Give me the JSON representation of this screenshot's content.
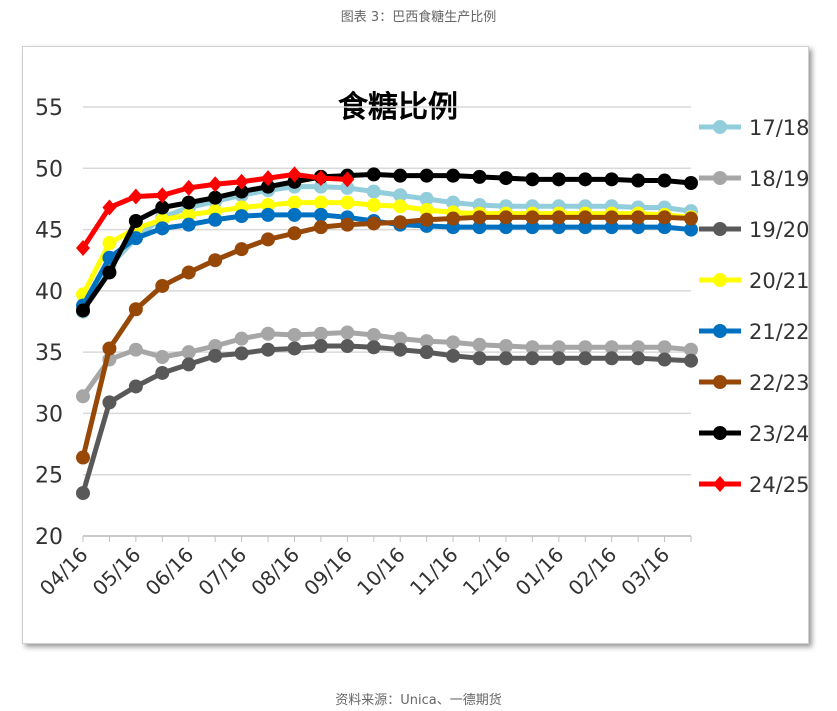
{
  "caption": "图表 3：巴西食糖生产比例",
  "source": "资料来源：Unica、一德期货",
  "chart_data": {
    "type": "line",
    "title": "食糖比例",
    "xlabel": "",
    "ylabel": "",
    "ylim": [
      20,
      55
    ],
    "yticks": [
      "20",
      "25",
      "30",
      "35",
      "40",
      "45",
      "50",
      "55"
    ],
    "xticks": [
      "04/16",
      "05/16",
      "06/16",
      "07/16",
      "08/16",
      "09/16",
      "10/16",
      "11/16",
      "12/16",
      "01/16",
      "02/16",
      "03/16"
    ],
    "points_per_month": 2,
    "grid": true,
    "legend_position": "right",
    "series": [
      {
        "name": "17/18",
        "color": "#92cddc",
        "marker": "circle",
        "values": [
          38.3,
          42.0,
          44.3,
          46.0,
          46.8,
          47.3,
          47.8,
          48.2,
          48.5,
          48.5,
          48.4,
          48.1,
          47.8,
          47.5,
          47.2,
          47.0,
          46.9,
          46.9,
          46.9,
          46.9,
          46.9,
          46.8,
          46.8,
          46.5
        ]
      },
      {
        "name": "18/19",
        "color": "#a6a6a6",
        "marker": "circle",
        "values": [
          31.4,
          34.4,
          35.2,
          34.6,
          35.0,
          35.5,
          36.1,
          36.5,
          36.4,
          36.5,
          36.6,
          36.4,
          36.1,
          35.9,
          35.8,
          35.6,
          35.5,
          35.4,
          35.4,
          35.4,
          35.4,
          35.4,
          35.4,
          35.2
        ]
      },
      {
        "name": "19/20",
        "color": "#595959",
        "marker": "circle",
        "values": [
          23.5,
          30.9,
          32.2,
          33.3,
          34.0,
          34.7,
          34.9,
          35.2,
          35.3,
          35.5,
          35.5,
          35.4,
          35.2,
          35.0,
          34.7,
          34.5,
          34.5,
          34.5,
          34.5,
          34.5,
          34.5,
          34.5,
          34.4,
          34.3
        ]
      },
      {
        "name": "20/21",
        "color": "#ffff00",
        "marker": "circle",
        "values": [
          39.7,
          43.9,
          45.1,
          45.8,
          46.2,
          46.5,
          46.8,
          47.0,
          47.2,
          47.2,
          47.2,
          47.0,
          46.9,
          46.6,
          46.4,
          46.3,
          46.3,
          46.3,
          46.3,
          46.3,
          46.3,
          46.3,
          46.2,
          46.0
        ]
      },
      {
        "name": "21/22",
        "color": "#0070c0",
        "marker": "circle",
        "values": [
          38.8,
          42.7,
          44.3,
          45.1,
          45.4,
          45.8,
          46.1,
          46.2,
          46.2,
          46.2,
          46.0,
          45.7,
          45.4,
          45.3,
          45.2,
          45.2,
          45.2,
          45.2,
          45.2,
          45.2,
          45.2,
          45.2,
          45.2,
          45.0
        ]
      },
      {
        "name": "22/23",
        "color": "#974706",
        "marker": "circle",
        "values": [
          26.4,
          35.3,
          38.5,
          40.4,
          41.5,
          42.5,
          43.4,
          44.2,
          44.7,
          45.2,
          45.4,
          45.5,
          45.6,
          45.8,
          45.9,
          46.0,
          46.0,
          46.0,
          46.0,
          46.0,
          46.0,
          46.0,
          46.0,
          45.9
        ]
      },
      {
        "name": "23/24",
        "color": "#000000",
        "marker": "circle",
        "values": [
          38.4,
          41.5,
          45.7,
          46.8,
          47.2,
          47.6,
          48.1,
          48.5,
          48.9,
          49.3,
          49.4,
          49.5,
          49.4,
          49.4,
          49.4,
          49.3,
          49.2,
          49.1,
          49.1,
          49.1,
          49.1,
          49.0,
          49.0,
          48.8
        ]
      },
      {
        "name": "24/25",
        "color": "#ff0000",
        "marker": "diamond",
        "values": [
          43.5,
          46.8,
          47.7,
          47.8,
          48.4,
          48.7,
          48.9,
          49.2,
          49.5,
          49.2,
          49.1
        ]
      }
    ]
  }
}
